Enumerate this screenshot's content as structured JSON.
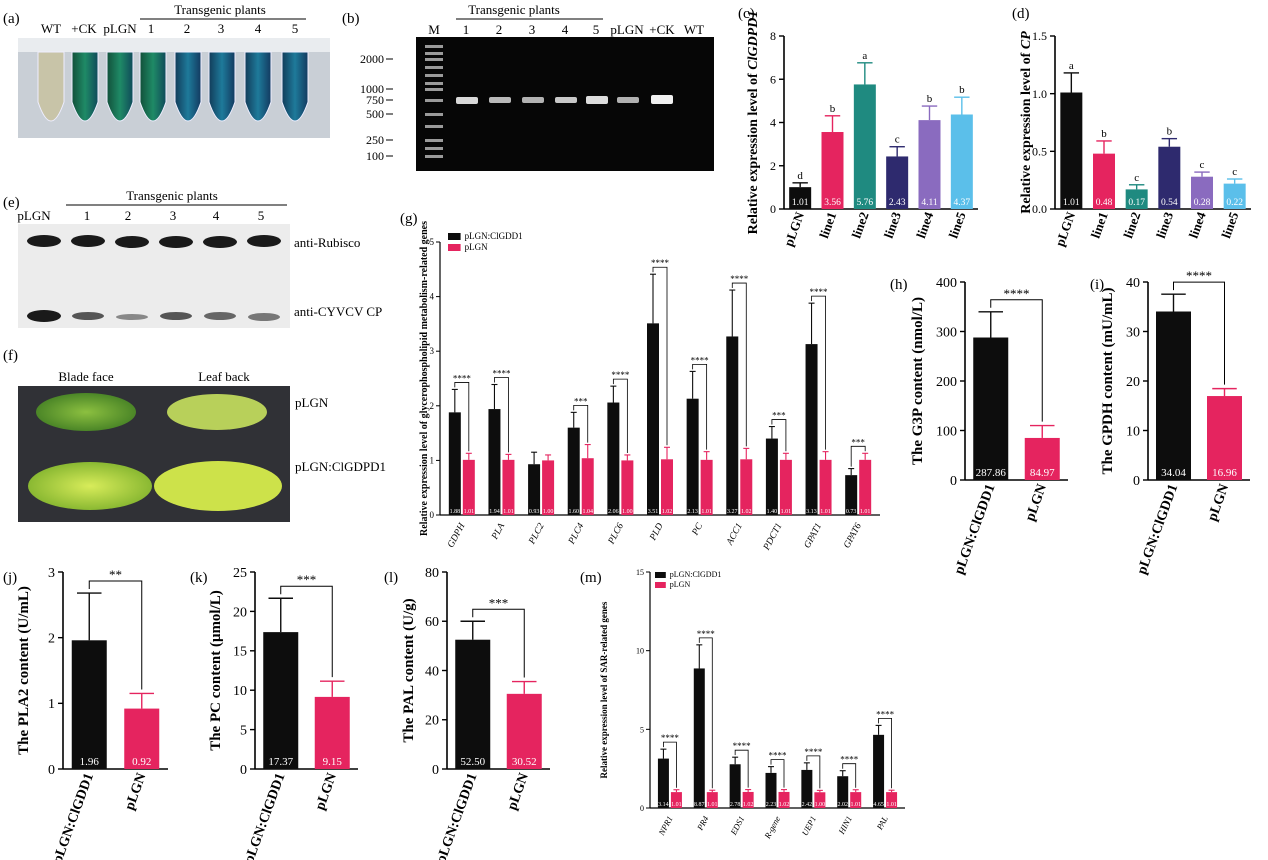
{
  "colors": {
    "black": "#0d0d0d",
    "pink": "#e5245f",
    "teal": "#1f8a80",
    "navy": "#2e2a6e",
    "purple": "#8a6bbf",
    "lightblue": "#5bbfea"
  },
  "panel_a": {
    "label": "(a)",
    "header": "Transgenic plants",
    "lanes": [
      "WT",
      "+CK",
      "pLGN",
      "1",
      "2",
      "3",
      "4",
      "5"
    ]
  },
  "panel_b": {
    "label": "(b)",
    "header": "Transgenic plants",
    "marker": "M",
    "lanes": [
      "1",
      "2",
      "3",
      "4",
      "5",
      "pLGN",
      "+CK",
      "WT"
    ],
    "ladder": [
      "2000",
      "1000",
      "750",
      "500",
      "250",
      "100"
    ]
  },
  "panel_e": {
    "label": "(e)",
    "header": "Transgenic plants",
    "lanes": [
      "pLGN",
      "1",
      "2",
      "3",
      "4",
      "5"
    ],
    "row1": "anti-Rubisco",
    "row2": "anti-CYVCV CP"
  },
  "panel_f": {
    "label": "(f)",
    "col1": "Blade face",
    "col2": "Leaf back",
    "row1": "pLGN",
    "row2": "pLGN:ClGDPD1"
  },
  "chart_data": [
    {
      "id": "c",
      "label": "(c)",
      "type": "bar",
      "ylabel_prefix": "Relative expression level of ",
      "ylabel_gene": "ClGDPD1",
      "categories": [
        "pLGN",
        "line1",
        "line2",
        "line3",
        "line4",
        "line5"
      ],
      "values": [
        1.01,
        3.56,
        5.76,
        2.43,
        4.11,
        4.37
      ],
      "value_labels": [
        "1.01",
        "3.56",
        "5.76",
        "2.43",
        "4.11",
        "4.37"
      ],
      "errors": [
        0.2,
        0.75,
        1.0,
        0.45,
        0.65,
        0.8
      ],
      "letters": [
        "d",
        "b",
        "a",
        "c",
        "b",
        "b"
      ],
      "colors": [
        "black",
        "pink",
        "teal",
        "navy",
        "purple",
        "lightblue"
      ],
      "ylim": [
        0,
        8
      ],
      "yticks": [
        "0",
        "2",
        "4",
        "6",
        "8"
      ]
    },
    {
      "id": "d",
      "label": "(d)",
      "type": "bar",
      "ylabel_prefix": "Relative expression level of ",
      "ylabel_gene": "CP",
      "categories": [
        "pLGN",
        "line1",
        "line2",
        "line3",
        "line4",
        "line5"
      ],
      "values": [
        1.01,
        0.48,
        0.17,
        0.54,
        0.28,
        0.22
      ],
      "value_labels": [
        "1.01",
        "0.48",
        "0.17",
        "0.54",
        "0.28",
        "0.22"
      ],
      "errors": [
        0.17,
        0.11,
        0.04,
        0.07,
        0.04,
        0.04
      ],
      "letters": [
        "a",
        "b",
        "c",
        "b",
        "c",
        "c"
      ],
      "colors": [
        "black",
        "pink",
        "teal",
        "navy",
        "purple",
        "lightblue"
      ],
      "ylim": [
        0,
        1.5
      ],
      "yticks": [
        "0.0",
        "0.5",
        "1.0",
        "1.5"
      ]
    },
    {
      "id": "g",
      "label": "(g)",
      "type": "grouped-bar",
      "ylabel": "Relative expression level of glycerophospholipid metabolism-related genes",
      "categories": [
        "GDPH",
        "PLA",
        "PLC2",
        "PLC4",
        "PLC6",
        "PLD",
        "PC",
        "ACC1",
        "PDCT1",
        "GPAT1",
        "GPAT6"
      ],
      "series": [
        {
          "name": "pLGN:ClGDD1",
          "color": "black",
          "values": [
            1.88,
            1.94,
            0.93,
            1.6,
            2.06,
            3.51,
            2.13,
            3.27,
            1.4,
            3.13,
            0.73
          ],
          "value_labels": [
            "1.88",
            "1.94",
            "0.93",
            "1.60",
            "2.06",
            "3.51",
            "2.13",
            "3.27",
            "1.40",
            "3.13",
            "0.73"
          ],
          "errors": [
            0.42,
            0.45,
            0.22,
            0.28,
            0.3,
            0.9,
            0.5,
            0.85,
            0.22,
            0.75,
            0.12
          ]
        },
        {
          "name": "pLGN",
          "color": "pink",
          "values": [
            1.01,
            1.01,
            1.0,
            1.04,
            1.0,
            1.02,
            1.01,
            1.02,
            1.01,
            1.01,
            1.01
          ],
          "value_labels": [
            "1.01",
            "1.01",
            "1.00",
            "1.04",
            "1.00",
            "1.02",
            "1.01",
            "1.02",
            "1.01",
            "1.01",
            "1.01"
          ],
          "errors": [
            0.12,
            0.1,
            0.1,
            0.25,
            0.1,
            0.22,
            0.15,
            0.2,
            0.12,
            0.15,
            0.12
          ]
        }
      ],
      "significance": [
        "****",
        "****",
        "",
        "***",
        "****",
        "****",
        "****",
        "****",
        "***",
        "****",
        "***"
      ],
      "ylim": [
        0,
        5
      ],
      "yticks": [
        "0",
        "1",
        "2",
        "3",
        "4",
        "5"
      ]
    },
    {
      "id": "h",
      "label": "(h)",
      "type": "bar",
      "ylabel": "The G3P content (nmol/L)",
      "categories": [
        "pLGN:ClGDD1",
        "pLGN"
      ],
      "values": [
        287.86,
        84.97
      ],
      "value_labels": [
        "287.86",
        "84.97"
      ],
      "errors": [
        52,
        25
      ],
      "colors": [
        "black",
        "pink"
      ],
      "significance": "****",
      "ylim": [
        0,
        400
      ],
      "yticks": [
        "0",
        "100",
        "200",
        "300",
        "400"
      ]
    },
    {
      "id": "i",
      "label": "(i)",
      "type": "bar",
      "ylabel": "The GPDH content (mU/mL)",
      "categories": [
        "pLGN:ClGDD1",
        "pLGN"
      ],
      "values": [
        34.04,
        16.96
      ],
      "value_labels": [
        "34.04",
        "16.96"
      ],
      "errors": [
        3.5,
        1.5
      ],
      "colors": [
        "black",
        "pink"
      ],
      "significance": "****",
      "ylim": [
        0,
        40
      ],
      "yticks": [
        "0",
        "10",
        "20",
        "30",
        "40"
      ]
    },
    {
      "id": "j",
      "label": "(j)",
      "type": "bar",
      "ylabel": "The PLA2 content (U/mL)",
      "categories": [
        "pLGN:ClGDD1",
        "pLGN"
      ],
      "values": [
        1.96,
        0.92
      ],
      "value_labels": [
        "1.96",
        "0.92"
      ],
      "errors": [
        0.72,
        0.23
      ],
      "colors": [
        "black",
        "pink"
      ],
      "significance": "**",
      "ylim": [
        0,
        3
      ],
      "yticks": [
        "0",
        "1",
        "2",
        "3"
      ]
    },
    {
      "id": "k",
      "label": "(k)",
      "type": "bar",
      "ylabel": "The PC content (μmol/L)",
      "categories": [
        "pLGN:ClGDD1",
        "pLGN"
      ],
      "values": [
        17.37,
        9.15
      ],
      "value_labels": [
        "17.37",
        "9.15"
      ],
      "errors": [
        4.3,
        2.0
      ],
      "colors": [
        "black",
        "pink"
      ],
      "significance": "***",
      "ylim": [
        0,
        25
      ],
      "yticks": [
        "0",
        "5",
        "10",
        "15",
        "20",
        "25"
      ]
    },
    {
      "id": "l",
      "label": "(l)",
      "type": "bar",
      "ylabel": "The PAL content (U/g)",
      "categories": [
        "pLGN:ClGDD1",
        "pLGN"
      ],
      "values": [
        52.5,
        30.52
      ],
      "value_labels": [
        "52.50",
        "30.52"
      ],
      "errors": [
        7.5,
        5.0
      ],
      "colors": [
        "black",
        "pink"
      ],
      "significance": "***",
      "ylim": [
        0,
        80
      ],
      "yticks": [
        "0",
        "20",
        "40",
        "60",
        "80"
      ]
    },
    {
      "id": "m",
      "label": "(m)",
      "type": "grouped-bar",
      "ylabel": "Relative expression level of SAR-related genes",
      "categories": [
        "NPR1",
        "PR4",
        "EDS1",
        "R-gene",
        "UEP1",
        "HIN1",
        "PAL"
      ],
      "series": [
        {
          "name": "pLGN:ClGDD1",
          "color": "black",
          "values": [
            3.14,
            8.87,
            2.78,
            2.23,
            2.42,
            2.02,
            4.65
          ],
          "value_labels": [
            "3.14",
            "8.87",
            "2.78",
            "2.23",
            "2.42",
            "2.02",
            "4.65"
          ],
          "errors": [
            0.6,
            1.5,
            0.45,
            0.4,
            0.45,
            0.35,
            0.6
          ]
        },
        {
          "name": "pLGN",
          "color": "pink",
          "values": [
            1.01,
            1.01,
            1.02,
            1.02,
            1.0,
            1.01,
            1.01
          ],
          "value_labels": [
            "1.01",
            "1.01",
            "1.02",
            "1.02",
            "1.00",
            "1.01",
            "1.01"
          ],
          "errors": [
            0.15,
            0.12,
            0.15,
            0.15,
            0.12,
            0.15,
            0.12
          ]
        }
      ],
      "significance": [
        "****",
        "****",
        "****",
        "****",
        "****",
        "****",
        "****"
      ],
      "ylim": [
        0,
        15
      ],
      "yticks": [
        "0",
        "5",
        "10",
        "15"
      ]
    }
  ]
}
